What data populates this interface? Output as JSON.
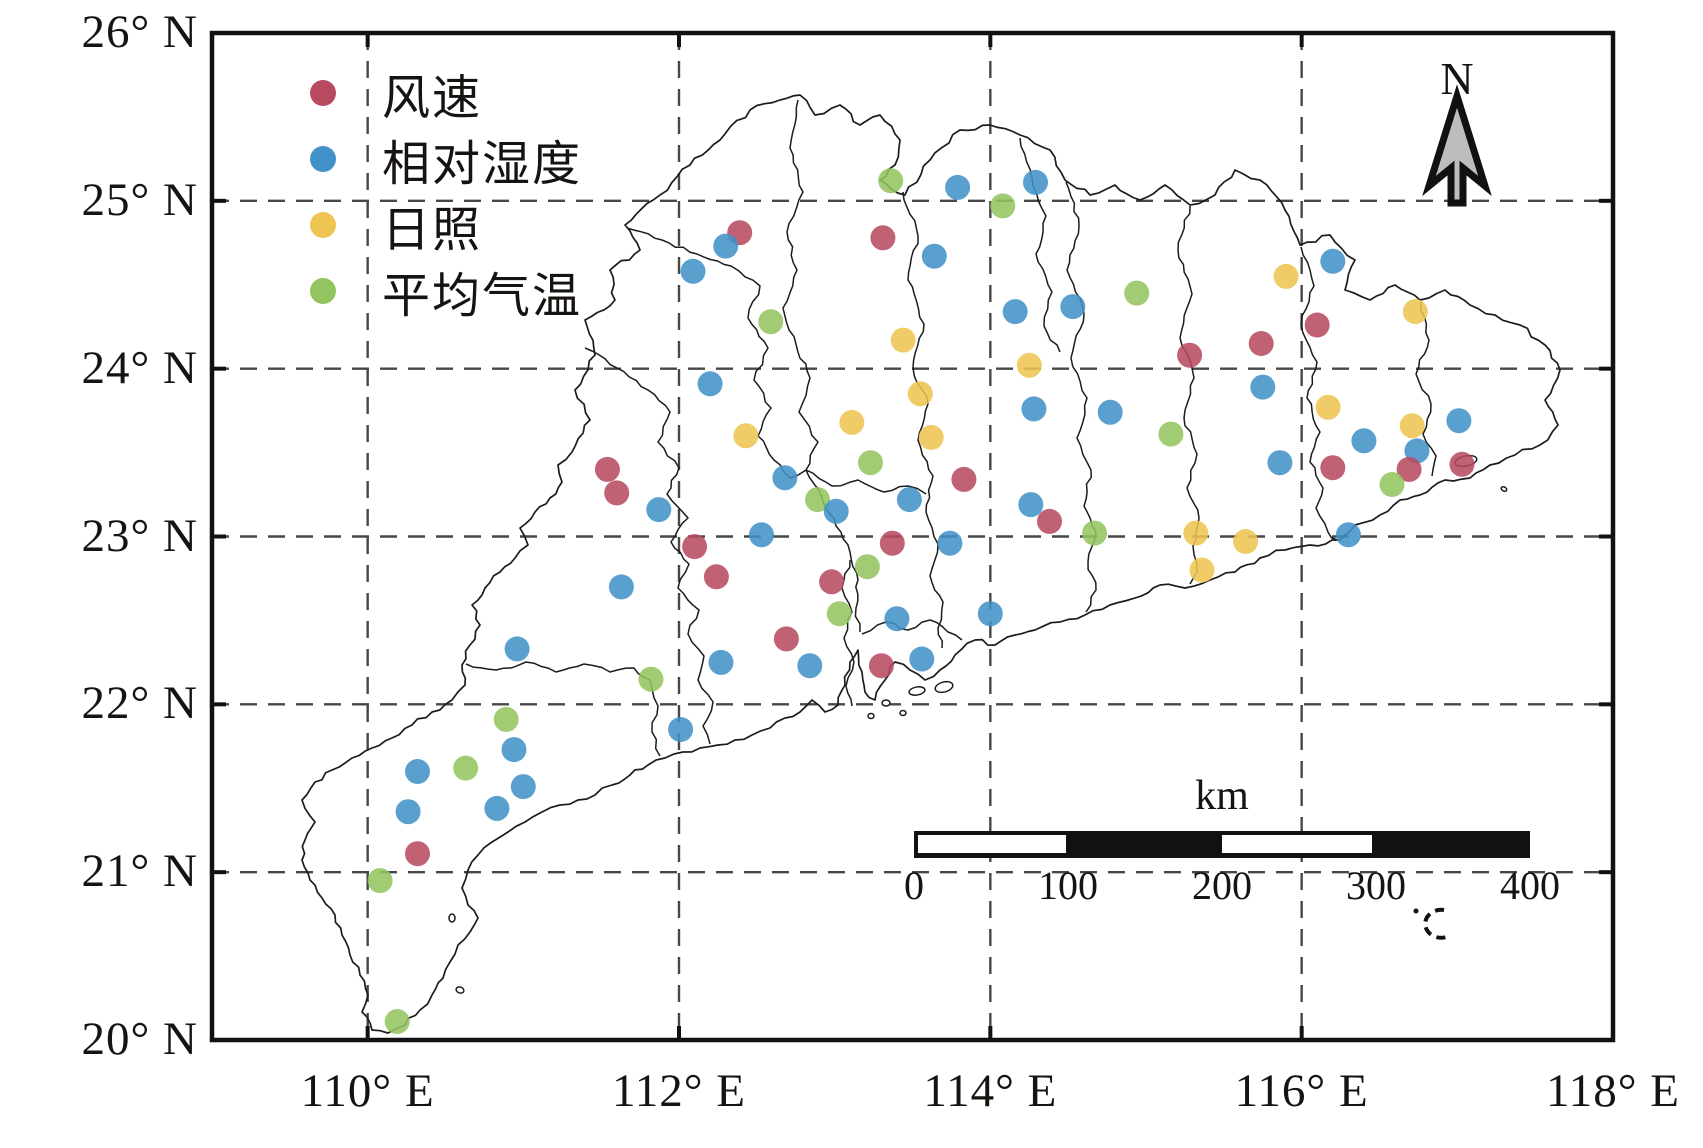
{
  "figure": {
    "type": "station-distribution-map",
    "region": "Guangdong Province, China"
  },
  "map": {
    "lon_min": 109,
    "lon_max": 118,
    "lat_min": 20,
    "lat_max": 26,
    "grid": "dashed",
    "lat_tick_labels": [
      "26° N",
      "25° N",
      "24° N",
      "23° N",
      "22° N",
      "21° N",
      "20° N"
    ],
    "lat_tick_values": [
      26,
      25,
      24,
      23,
      22,
      21,
      20
    ],
    "lon_tick_labels": [
      "110° E",
      "112° E",
      "114° E",
      "116° E",
      "118° E"
    ],
    "lon_tick_values": [
      110,
      112,
      114,
      116,
      118
    ]
  },
  "legend": {
    "items": [
      {
        "key": "wind",
        "label": "风速",
        "color": "#b84a5f"
      },
      {
        "key": "humidity",
        "label": "相对湿度",
        "color": "#4192c8"
      },
      {
        "key": "sunshine",
        "label": "日照",
        "color": "#eec452"
      },
      {
        "key": "temperature",
        "label": "平均气温",
        "color": "#93c45f"
      }
    ]
  },
  "north_arrow": {
    "label": "N"
  },
  "scale_bar": {
    "unit": "km",
    "tick_labels": [
      "0",
      "100",
      "200",
      "300",
      "400"
    ],
    "km_per_segment": 100,
    "segments": 4
  },
  "stations": [
    {
      "lon": 113.36,
      "lat": 25.12,
      "factor": "temperature"
    },
    {
      "lon": 113.79,
      "lat": 25.08,
      "factor": "humidity"
    },
    {
      "lon": 114.29,
      "lat": 25.11,
      "factor": "humidity"
    },
    {
      "lon": 114.08,
      "lat": 24.97,
      "factor": "temperature"
    },
    {
      "lon": 112.39,
      "lat": 24.81,
      "factor": "wind"
    },
    {
      "lon": 112.3,
      "lat": 24.73,
      "factor": "humidity"
    },
    {
      "lon": 113.31,
      "lat": 24.78,
      "factor": "wind"
    },
    {
      "lon": 113.64,
      "lat": 24.67,
      "factor": "humidity"
    },
    {
      "lon": 112.09,
      "lat": 24.58,
      "factor": "humidity"
    },
    {
      "lon": 114.16,
      "lat": 24.34,
      "factor": "humidity"
    },
    {
      "lon": 114.53,
      "lat": 24.37,
      "factor": "humidity"
    },
    {
      "lon": 112.59,
      "lat": 24.28,
      "factor": "temperature"
    },
    {
      "lon": 113.44,
      "lat": 24.17,
      "factor": "sunshine"
    },
    {
      "lon": 114.25,
      "lat": 24.02,
      "factor": "sunshine"
    },
    {
      "lon": 112.2,
      "lat": 23.91,
      "factor": "humidity"
    },
    {
      "lon": 113.55,
      "lat": 23.85,
      "factor": "sunshine"
    },
    {
      "lon": 113.11,
      "lat": 23.68,
      "factor": "sunshine"
    },
    {
      "lon": 114.28,
      "lat": 23.76,
      "factor": "humidity"
    },
    {
      "lon": 112.43,
      "lat": 23.6,
      "factor": "sunshine"
    },
    {
      "lon": 113.62,
      "lat": 23.59,
      "factor": "sunshine"
    },
    {
      "lon": 116.2,
      "lat": 24.64,
      "factor": "humidity"
    },
    {
      "lon": 115.9,
      "lat": 24.55,
      "factor": "sunshine"
    },
    {
      "lon": 114.94,
      "lat": 24.45,
      "factor": "temperature"
    },
    {
      "lon": 116.73,
      "lat": 24.34,
      "factor": "sunshine"
    },
    {
      "lon": 116.1,
      "lat": 24.26,
      "factor": "wind"
    },
    {
      "lon": 115.74,
      "lat": 24.15,
      "factor": "wind"
    },
    {
      "lon": 115.28,
      "lat": 24.08,
      "factor": "wind"
    },
    {
      "lon": 115.75,
      "lat": 23.89,
      "factor": "humidity"
    },
    {
      "lon": 114.77,
      "lat": 23.74,
      "factor": "humidity"
    },
    {
      "lon": 116.17,
      "lat": 23.77,
      "factor": "sunshine"
    },
    {
      "lon": 115.16,
      "lat": 23.61,
      "factor": "temperature"
    },
    {
      "lon": 116.4,
      "lat": 23.57,
      "factor": "humidity"
    },
    {
      "lon": 116.71,
      "lat": 23.66,
      "factor": "sunshine"
    },
    {
      "lon": 117.01,
      "lat": 23.69,
      "factor": "humidity"
    },
    {
      "lon": 116.74,
      "lat": 23.51,
      "factor": "humidity"
    },
    {
      "lon": 115.86,
      "lat": 23.44,
      "factor": "humidity"
    },
    {
      "lon": 116.2,
      "lat": 23.41,
      "factor": "wind"
    },
    {
      "lon": 116.69,
      "lat": 23.4,
      "factor": "wind"
    },
    {
      "lon": 116.58,
      "lat": 23.31,
      "factor": "temperature"
    },
    {
      "lon": 117.03,
      "lat": 23.43,
      "factor": "wind"
    },
    {
      "lon": 111.54,
      "lat": 23.4,
      "factor": "wind"
    },
    {
      "lon": 111.6,
      "lat": 23.26,
      "factor": "wind"
    },
    {
      "lon": 111.87,
      "lat": 23.16,
      "factor": "humidity"
    },
    {
      "lon": 112.68,
      "lat": 23.35,
      "factor": "humidity"
    },
    {
      "lon": 112.89,
      "lat": 23.22,
      "factor": "temperature"
    },
    {
      "lon": 112.1,
      "lat": 22.94,
      "factor": "wind"
    },
    {
      "lon": 112.53,
      "lat": 23.01,
      "factor": "humidity"
    },
    {
      "lon": 112.24,
      "lat": 22.76,
      "factor": "wind"
    },
    {
      "lon": 111.63,
      "lat": 22.7,
      "factor": "humidity"
    },
    {
      "lon": 112.69,
      "lat": 22.39,
      "factor": "wind"
    },
    {
      "lon": 110.96,
      "lat": 22.33,
      "factor": "humidity"
    },
    {
      "lon": 112.27,
      "lat": 22.25,
      "factor": "humidity"
    },
    {
      "lon": 112.84,
      "lat": 22.23,
      "factor": "humidity"
    },
    {
      "lon": 111.82,
      "lat": 22.15,
      "factor": "temperature"
    },
    {
      "lon": 110.89,
      "lat": 21.91,
      "factor": "temperature"
    },
    {
      "lon": 112.01,
      "lat": 21.85,
      "factor": "humidity"
    },
    {
      "lon": 110.94,
      "lat": 21.73,
      "factor": "humidity"
    },
    {
      "lon": 110.32,
      "lat": 21.6,
      "factor": "humidity"
    },
    {
      "lon": 110.63,
      "lat": 21.62,
      "factor": "temperature"
    },
    {
      "lon": 111.0,
      "lat": 21.51,
      "factor": "humidity"
    },
    {
      "lon": 110.83,
      "lat": 21.38,
      "factor": "humidity"
    },
    {
      "lon": 110.26,
      "lat": 21.36,
      "factor": "humidity"
    },
    {
      "lon": 110.32,
      "lat": 21.11,
      "factor": "wind"
    },
    {
      "lon": 110.08,
      "lat": 20.95,
      "factor": "temperature"
    },
    {
      "lon": 113.23,
      "lat": 23.44,
      "factor": "temperature"
    },
    {
      "lon": 113.83,
      "lat": 23.34,
      "factor": "wind"
    },
    {
      "lon": 113.48,
      "lat": 23.22,
      "factor": "humidity"
    },
    {
      "lon": 113.01,
      "lat": 23.15,
      "factor": "humidity"
    },
    {
      "lon": 113.37,
      "lat": 22.96,
      "factor": "wind"
    },
    {
      "lon": 113.74,
      "lat": 22.96,
      "factor": "humidity"
    },
    {
      "lon": 114.26,
      "lat": 23.19,
      "factor": "humidity"
    },
    {
      "lon": 114.38,
      "lat": 23.09,
      "factor": "wind"
    },
    {
      "lon": 114.67,
      "lat": 23.02,
      "factor": "temperature"
    },
    {
      "lon": 115.32,
      "lat": 23.02,
      "factor": "sunshine"
    },
    {
      "lon": 115.36,
      "lat": 22.8,
      "factor": "sunshine"
    },
    {
      "lon": 112.98,
      "lat": 22.73,
      "factor": "wind"
    },
    {
      "lon": 113.03,
      "lat": 22.54,
      "factor": "temperature"
    },
    {
      "lon": 113.4,
      "lat": 22.51,
      "factor": "humidity"
    },
    {
      "lon": 113.3,
      "lat": 22.23,
      "factor": "wind"
    },
    {
      "lon": 113.56,
      "lat": 22.27,
      "factor": "humidity"
    },
    {
      "lon": 114.0,
      "lat": 22.54,
      "factor": "humidity"
    },
    {
      "lon": 113.21,
      "lat": 22.82,
      "factor": "temperature"
    },
    {
      "lon": 116.3,
      "lat": 23.01,
      "factor": "humidity"
    },
    {
      "lon": 115.64,
      "lat": 22.97,
      "factor": "sunshine"
    },
    {
      "lon": 110.19,
      "lat": 20.11,
      "factor": "temperature"
    }
  ]
}
